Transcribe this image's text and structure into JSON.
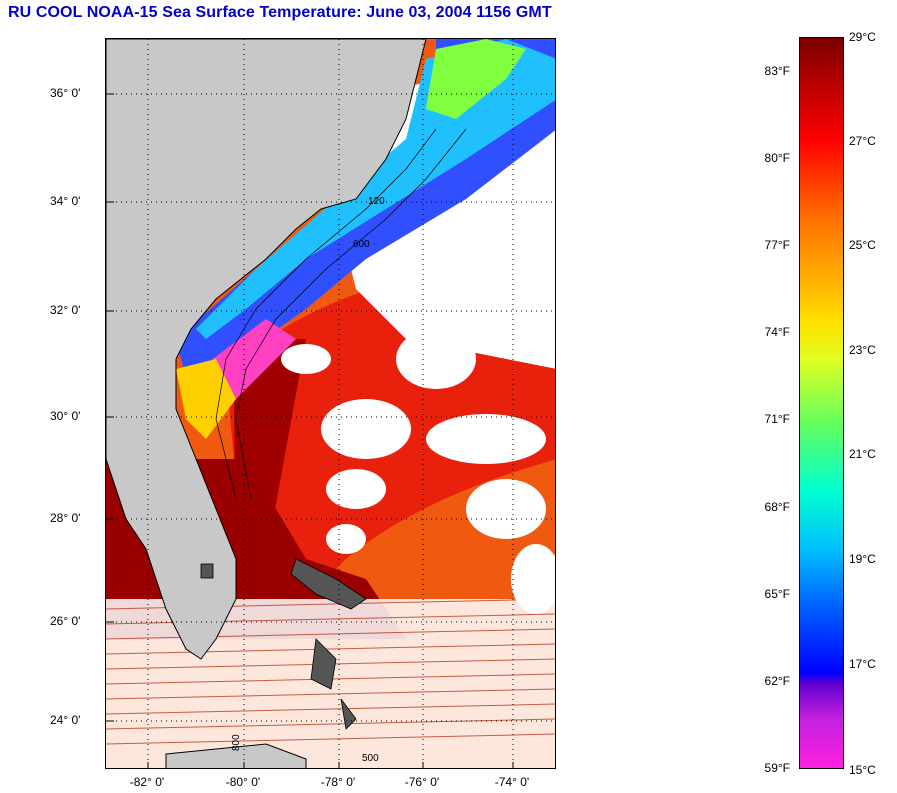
{
  "title": "RU COOL  NOAA-15  Sea Surface Temperature:  June 03, 2004 1156 GMT",
  "map": {
    "lat_labels": [
      "36° 0'",
      "34° 0'",
      "32° 0'",
      "30° 0'",
      "28° 0'",
      "26° 0'",
      "24° 0'"
    ],
    "lon_labels": [
      "-82° 0'",
      "-80° 0'",
      "-78° 0'",
      "-76° 0'",
      "-74° 0'"
    ],
    "depth_contours": [
      "120",
      "600",
      "800",
      "500"
    ],
    "colors": {
      "land": "#c8c8c8",
      "warm": "#e8200c",
      "gulfstream": "#a00000",
      "cloud": "#ffffff"
    }
  },
  "colorbar": {
    "fahrenheit": [
      "83°F",
      "80°F",
      "77°F",
      "74°F",
      "71°F",
      "68°F",
      "65°F",
      "62°F",
      "59°F"
    ],
    "celsius": [
      "29°C",
      "27°C",
      "25°C",
      "23°C",
      "21°C",
      "19°C",
      "17°C",
      "15°C"
    ]
  }
}
